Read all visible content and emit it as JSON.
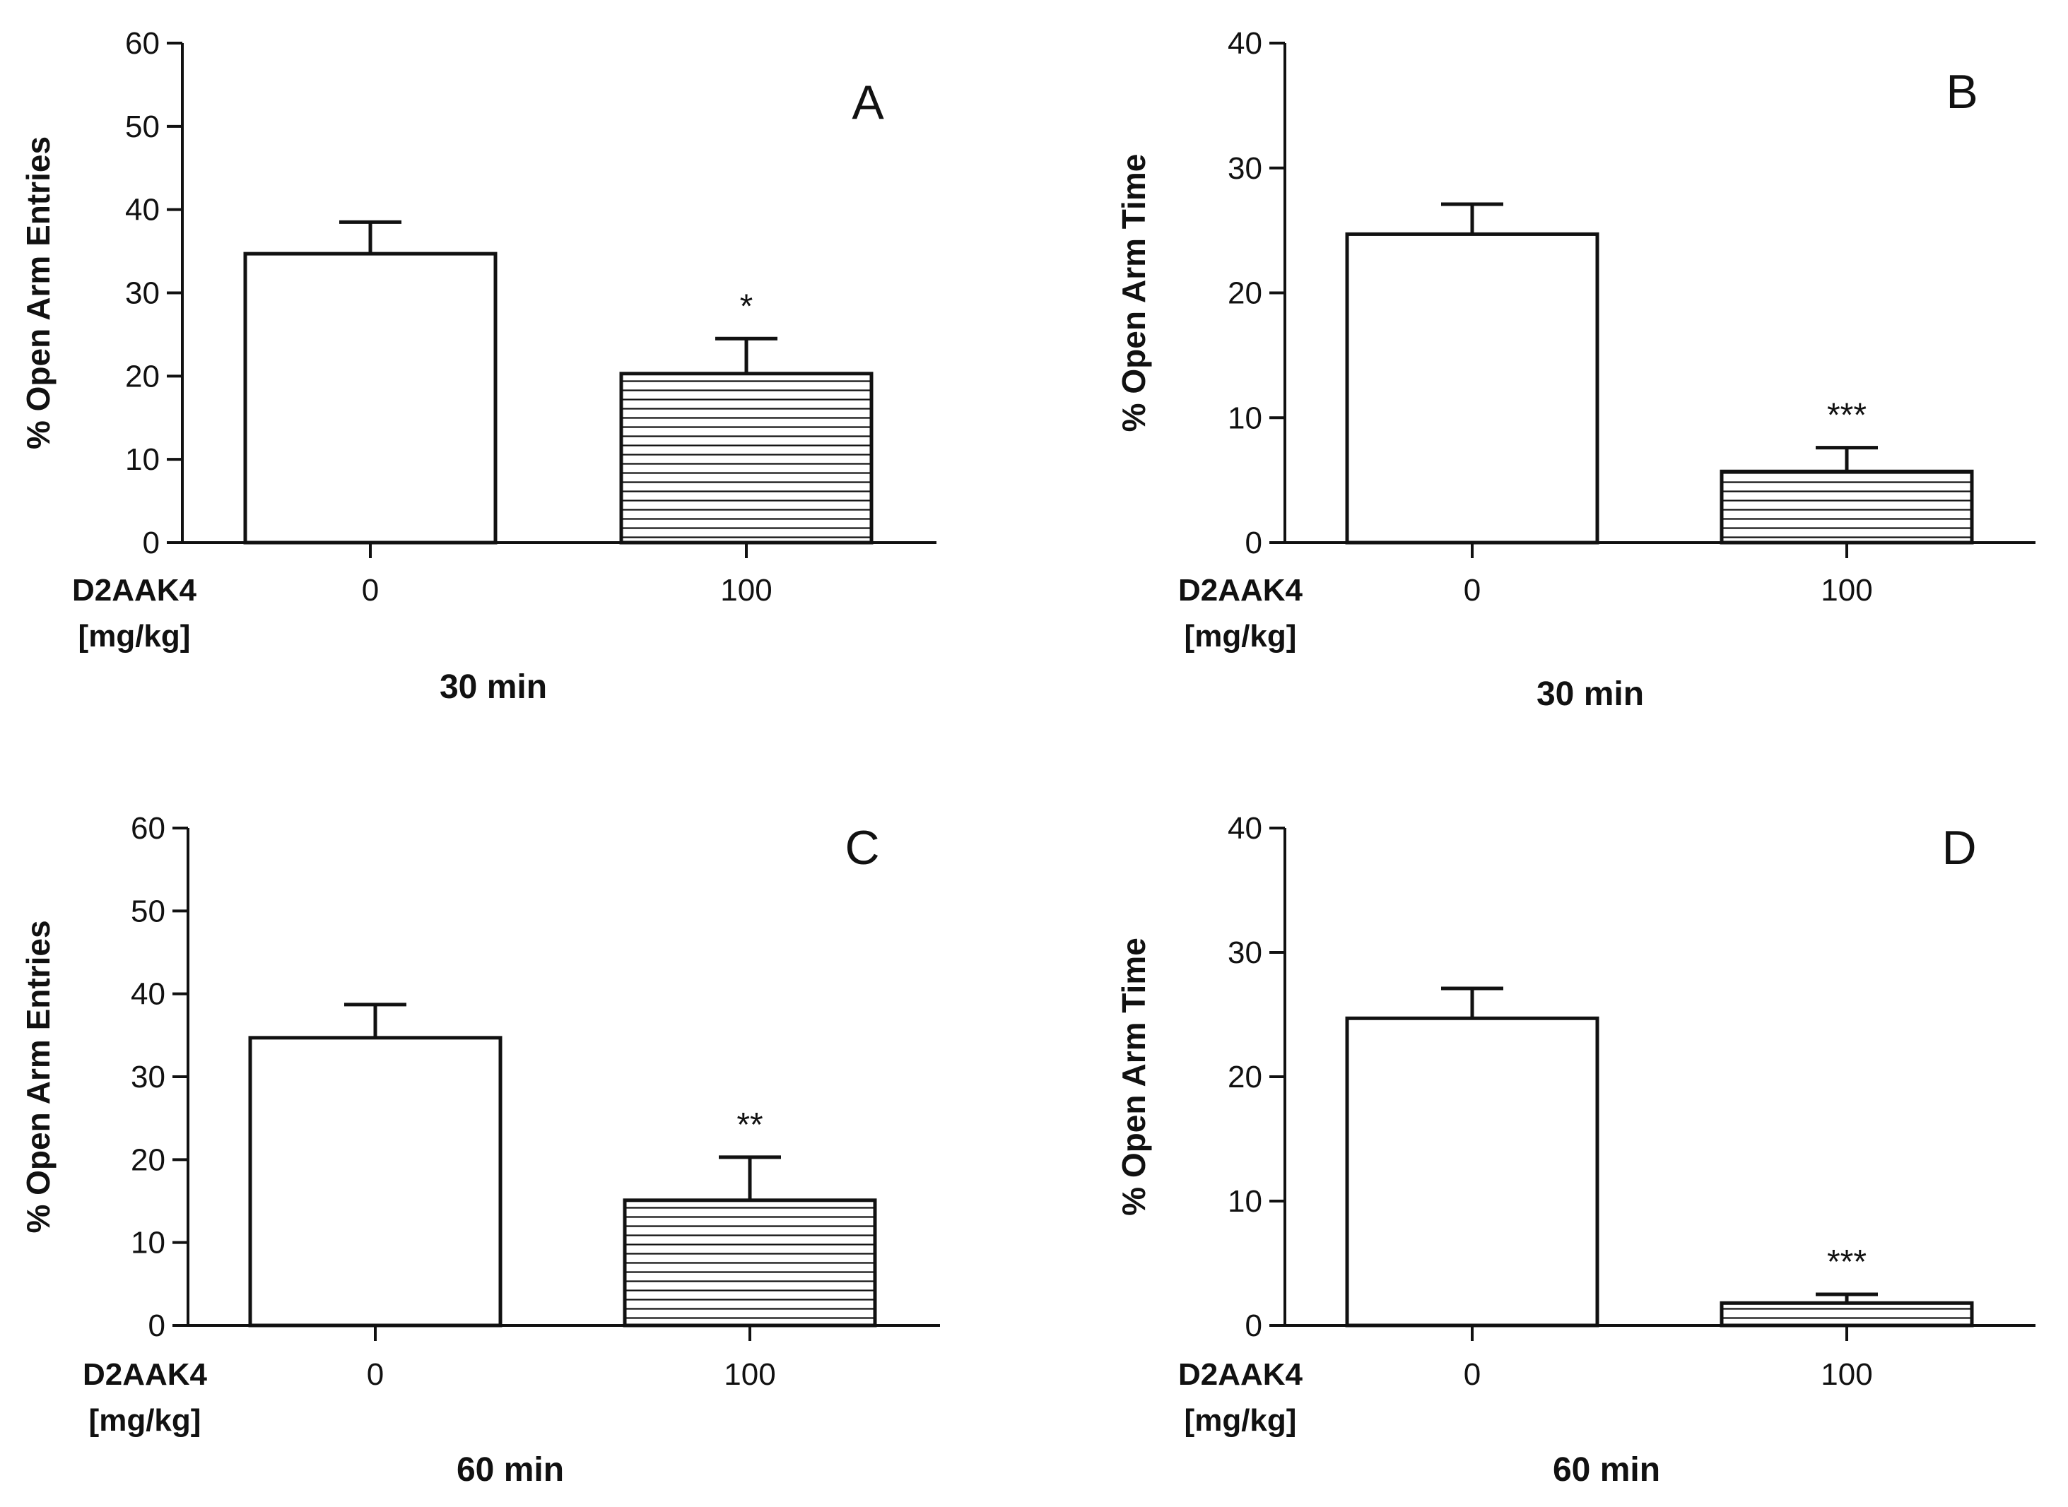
{
  "colors": {
    "axis": "#111111",
    "bar_control": "#ffffff",
    "bar_hatch_background": "#ffffff",
    "hatch_stroke": "#111111"
  },
  "chart_data": [
    {
      "type": "bar",
      "panel": "A",
      "ylabel": "% Open Arm Entries",
      "ylim": [
        0,
        60
      ],
      "yticks": [
        "0",
        "10",
        "20",
        "30",
        "40",
        "50",
        "60"
      ],
      "drug_label": "D2AAK4",
      "unit_label": "[mg/kg]",
      "time_label": "30 min",
      "categories": [
        "0",
        "100"
      ],
      "values": [
        34.7,
        20.3
      ],
      "errors": [
        3.8,
        4.2
      ],
      "fills": [
        "open",
        "hatched"
      ],
      "significance": [
        "",
        "*"
      ]
    },
    {
      "type": "bar",
      "panel": "B",
      "ylabel": "% Open Arm Time",
      "ylim": [
        0,
        40
      ],
      "yticks": [
        "0",
        "10",
        "20",
        "30",
        "40"
      ],
      "drug_label": "D2AAK4",
      "unit_label": "[mg/kg]",
      "time_label": "30 min",
      "categories": [
        "0",
        "100"
      ],
      "values": [
        24.7,
        5.7
      ],
      "errors": [
        2.4,
        1.9
      ],
      "fills": [
        "open",
        "hatched"
      ],
      "significance": [
        "",
        "***"
      ]
    },
    {
      "type": "bar",
      "panel": "C",
      "ylabel": "% Open Arm Entries",
      "ylim": [
        0,
        60
      ],
      "yticks": [
        "0",
        "10",
        "20",
        "30",
        "40",
        "50",
        "60"
      ],
      "drug_label": "D2AAK4",
      "unit_label": "[mg/kg]",
      "time_label": "60 min",
      "categories": [
        "0",
        "100"
      ],
      "values": [
        34.7,
        15.1
      ],
      "errors": [
        4.0,
        5.2
      ],
      "fills": [
        "open",
        "hatched"
      ],
      "significance": [
        "",
        "**"
      ]
    },
    {
      "type": "bar",
      "panel": "D",
      "ylabel": "% Open Arm Time",
      "ylim": [
        0,
        40
      ],
      "yticks": [
        "0",
        "10",
        "20",
        "30",
        "40"
      ],
      "drug_label": "D2AAK4",
      "unit_label": "[mg/kg]",
      "time_label": "60 min",
      "categories": [
        "0",
        "100"
      ],
      "values": [
        24.7,
        1.8
      ],
      "errors": [
        2.4,
        0.7
      ],
      "fills": [
        "open",
        "hatched"
      ],
      "significance": [
        "",
        "***"
      ]
    }
  ]
}
